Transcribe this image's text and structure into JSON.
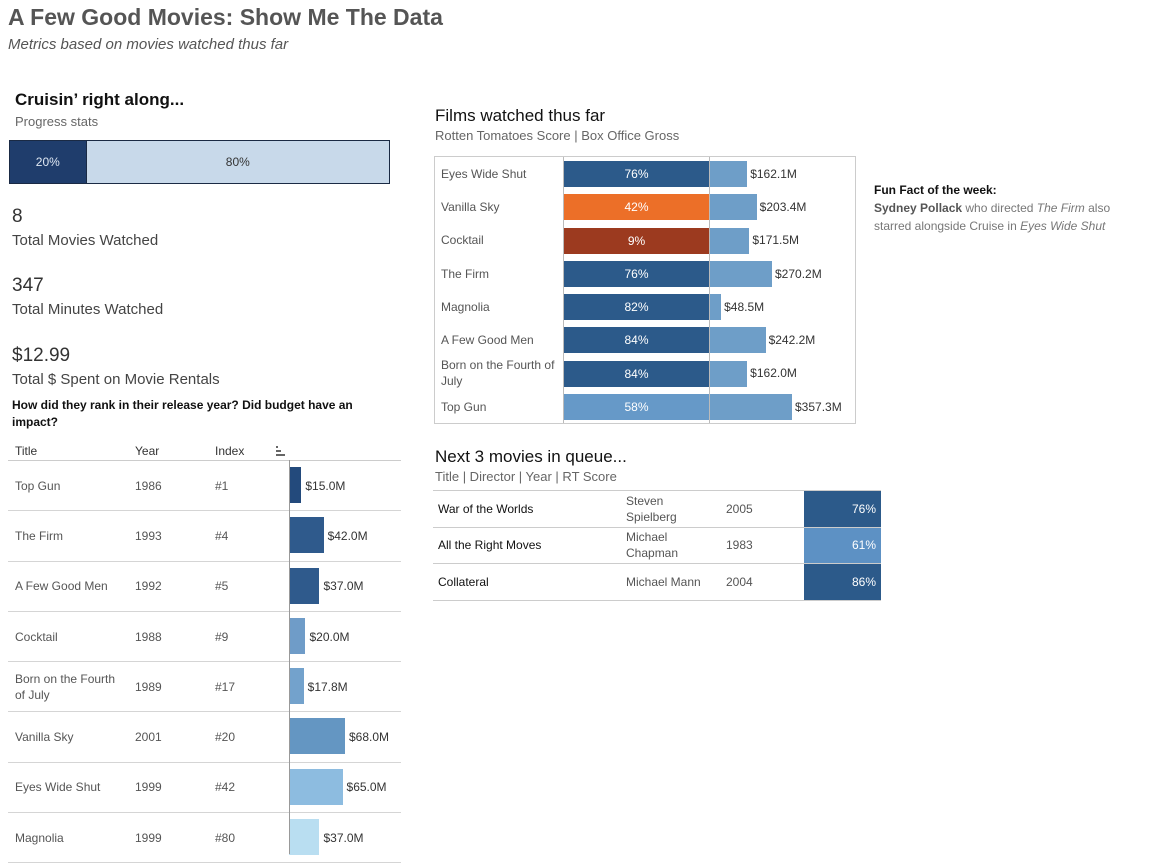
{
  "title": "A Few Good Movies: Show Me The Data",
  "subtitle": "Metrics based on movies watched thus far",
  "progress": {
    "heading": "Cruisin’ right along...",
    "subheading": "Progress stats",
    "done_pct": 20,
    "done_label": "20%",
    "remaining_label": "80%",
    "done_color": "#1f3d6c",
    "remaining_color": "#c8d9ea"
  },
  "stats": [
    {
      "value": "8",
      "label": "Total Movies Watched"
    },
    {
      "value": "347",
      "label": "Total Minutes Watched"
    },
    {
      "value": "$12.99",
      "label": "Total $ Spent on Movie Rentals"
    }
  ],
  "ranking": {
    "question": "How did they rank in their release year? Did budget have an impact?",
    "headers": {
      "title": "Title",
      "year": "Year",
      "index": "Index"
    },
    "sort_icon": "sort-descending-icon",
    "rows": [
      {
        "title": "Top Gun",
        "year": "1986",
        "index": "#1",
        "budget": 15.0,
        "budget_label": "$15.0M",
        "color": "#234a7c"
      },
      {
        "title": "The Firm",
        "year": "1993",
        "index": "#4",
        "budget": 42.0,
        "budget_label": "$42.0M",
        "color": "#2f5a8c"
      },
      {
        "title": "A Few Good Men",
        "year": "1992",
        "index": "#5",
        "budget": 37.0,
        "budget_label": "$37.0M",
        "color": "#2f5a8c"
      },
      {
        "title": "Cocktail",
        "year": "1988",
        "index": "#9",
        "budget": 20.0,
        "budget_label": "$20.0M",
        "color": "#6f9cc8"
      },
      {
        "title": "Born on the Fourth of July",
        "year": "1989",
        "index": "#17",
        "budget": 17.8,
        "budget_label": "$17.8M",
        "color": "#73a2cc"
      },
      {
        "title": "Vanilla Sky",
        "year": "2001",
        "index": "#20",
        "budget": 68.0,
        "budget_label": "$68.0M",
        "color": "#6496c2"
      },
      {
        "title": "Eyes Wide Shut",
        "year": "1999",
        "index": "#42",
        "budget": 65.0,
        "budget_label": "$65.0M",
        "color": "#8dbce0"
      },
      {
        "title": "Magnolia",
        "year": "1999",
        "index": "#80",
        "budget": 37.0,
        "budget_label": "$37.0M",
        "color": "#b9def1"
      }
    ]
  },
  "chart_data": {
    "type": "bar",
    "title": "Films watched thus far",
    "subtitle": "Rotten Tomatoes Score | Box Office Gross",
    "categories": [
      "Eyes Wide Shut",
      "Vanilla Sky",
      "Cocktail",
      "The Firm",
      "Magnolia",
      "A Few Good Men",
      "Born on the Fourth of July",
      "Top Gun"
    ],
    "series": [
      {
        "values": [
          76,
          42,
          9,
          76,
          82,
          84,
          84,
          58
        ],
        "labels": [
          "76%",
          "42%",
          "9%",
          "76%",
          "82%",
          "84%",
          "84%",
          "58%"
        ],
        "colors": [
          "#2c5a8a",
          "#ec6f28",
          "#9c3a1f",
          "#2c5a8a",
          "#2c5a8a",
          "#2c5a8a",
          "#2c5a8a",
          "#6699c8"
        ]
      },
      {
        "values": [
          162.1,
          203.4,
          171.5,
          270.2,
          48.5,
          242.2,
          162.0,
          357.3
        ],
        "labels": [
          "$162.1M",
          "$203.4M",
          "$171.5M",
          "$270.2M",
          "$48.5M",
          "$242.2M",
          "$162.0M",
          "$357.3M"
        ],
        "color": "#6e9ec8"
      }
    ]
  },
  "fun_fact": {
    "heading": "Fun Fact of the week:",
    "name": "Sydney Pollack",
    "t1": " who directed ",
    "film1": "The Firm",
    "t2": " also starred alongside Cruise in ",
    "film2": "Eyes Wide Shut"
  },
  "queue": {
    "heading": "Next 3 movies in queue...",
    "subheading": "Title | Director | Year | RT Score",
    "rows": [
      {
        "title": "War of the Worlds",
        "director": "Steven Spielberg",
        "year": "2005",
        "score": "76%",
        "color": "#2c5a8a"
      },
      {
        "title": "All the Right Moves",
        "director": "Michael Chapman",
        "year": "1983",
        "score": "61%",
        "color": "#5d91c4"
      },
      {
        "title": "Collateral",
        "director": "Michael Mann",
        "year": "2004",
        "score": "86%",
        "color": "#2c5a8a"
      }
    ]
  }
}
